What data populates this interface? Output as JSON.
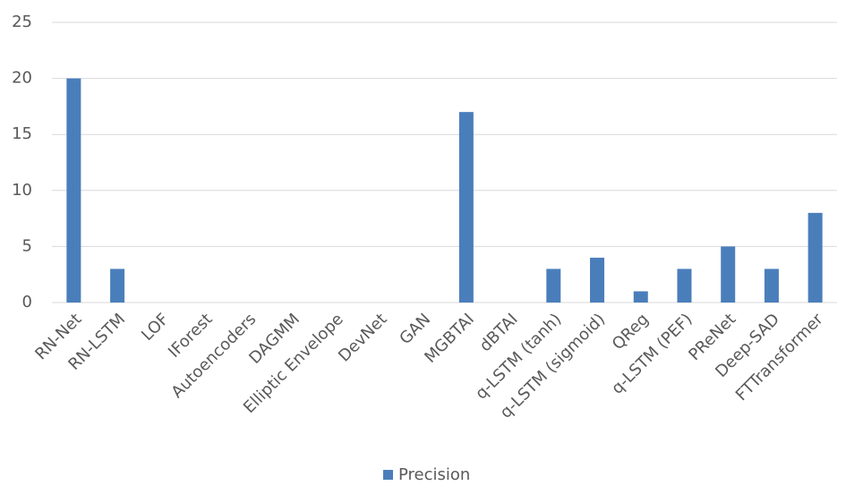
{
  "chart_data": {
    "type": "bar",
    "categories": [
      "RN-Net",
      "RN-LSTM",
      "LOF",
      "IForest",
      "Autoencoders",
      "DAGMM",
      "Elliptic Envelope",
      "DevNet",
      "GAN",
      "MGBTAI",
      "dBTAI",
      "q-LSTM (tanh)",
      "q-LSTM (sigmoid)",
      "QReg",
      "q-LSTM (PEF)",
      "PReNet",
      "Deep-SAD",
      "FTTransformer"
    ],
    "series": [
      {
        "name": "Precision",
        "color": "#4a7ebb",
        "values": [
          20,
          3,
          0,
          0,
          0,
          0,
          0,
          0,
          0,
          17,
          0,
          3,
          4,
          1,
          3,
          5,
          3,
          8
        ]
      }
    ],
    "ylim": [
      0,
      25
    ],
    "yticks": [
      0,
      5,
      10,
      15,
      20,
      25
    ],
    "grid": true,
    "legend": "bottom"
  }
}
